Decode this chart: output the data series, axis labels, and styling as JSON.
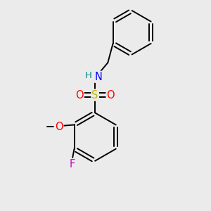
{
  "background_color": "#ebebeb",
  "bond_color": "#000000",
  "atom_colors": {
    "O": "#ff0000",
    "N": "#0000ff",
    "S": "#bbbb00",
    "F": "#cc00cc",
    "H": "#008888",
    "C": "#000000"
  },
  "figsize": [
    3.0,
    3.0
  ],
  "dpi": 100,
  "lw": 1.4,
  "font_size": 9.5
}
